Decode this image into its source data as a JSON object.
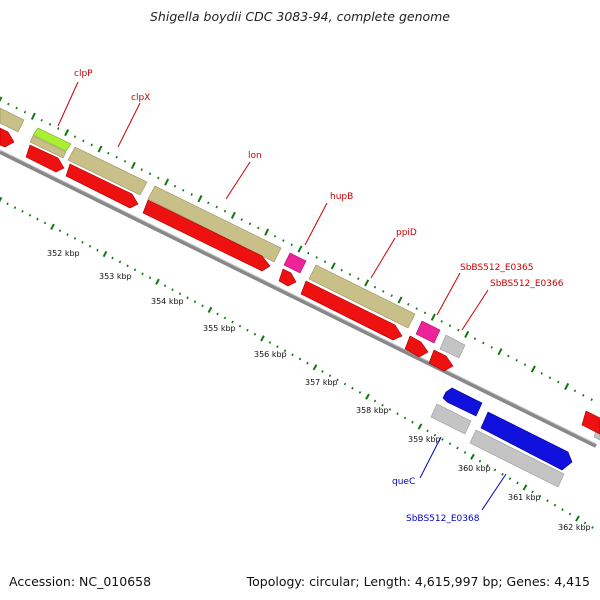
{
  "title": "Shigella boydii CDC 3083-94, complete genome",
  "footer": {
    "accession": "Accession: NC_010658",
    "summary": "Topology: circular; Length: 4,615,997 bp; Genes: 4,415"
  },
  "colors": {
    "red": "#ee1111",
    "tan": "#c8c088",
    "magenta": "#ee2299",
    "blue": "#1111dd",
    "gray": "#c4c4c4",
    "lime": "#aaee33",
    "backbone": "#888888",
    "ticks": "#117711",
    "label_red": "#cc0000",
    "label_blue": "#0000cc"
  },
  "scale_labels": [
    "352 kbp",
    "353 kbp",
    "354 kbp",
    "355 kbp",
    "356 kbp",
    "357 kbp",
    "358 kbp",
    "359 kbp",
    "360 kbp",
    "361 kbp",
    "362 kbp"
  ],
  "gene_labels": {
    "clpP": "clpP",
    "clpX": "clpX",
    "lon": "lon",
    "hupB": "hupB",
    "ppiD": "ppiD",
    "e0365": "SbBS512_E0365",
    "e0366": "SbBS512_E0366",
    "queC": "queC",
    "e0368": "SbBS512_E0368"
  }
}
